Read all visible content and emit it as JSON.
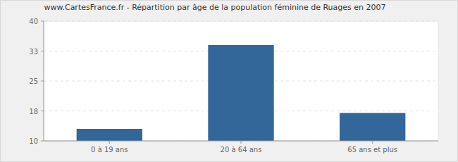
{
  "chart_data": {
    "type": "bar",
    "title": "www.CartesFrance.fr - Répartition par âge de la population féminine de Ruages en 2007",
    "categories": [
      "0 à 19 ans",
      "20 à 64 ans",
      "65 ans et plus"
    ],
    "values": [
      13,
      34,
      17
    ],
    "color": "#336699",
    "ylim": [
      10,
      40
    ],
    "yticks": [
      10,
      {
        "value": 17.5,
        "label": "18"
      },
      25,
      {
        "value": 32.5,
        "label": "33"
      },
      40
    ],
    "grid": true
  }
}
